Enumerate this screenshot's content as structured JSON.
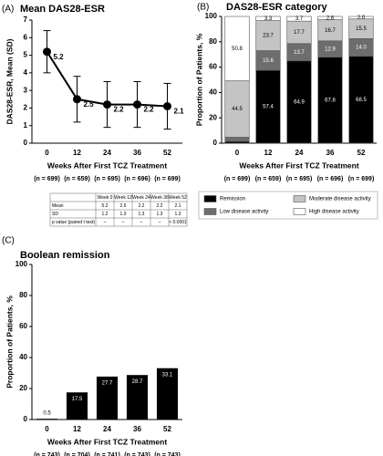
{
  "chart_data": [
    {
      "type": "line",
      "panel": "(A)",
      "title": "Mean DAS28-ESR",
      "categories": [
        "0",
        "12",
        "24",
        "36",
        "52"
      ],
      "n_labels": [
        "(n = 699)",
        "(n = 659)",
        "(n = 695)",
        "(n = 696)",
        "(n = 699)"
      ],
      "series": [
        {
          "name": "Mean DAS28-ESR",
          "color": "#000000",
          "values": [
            5.2,
            2.5,
            2.2,
            2.2,
            2.1
          ],
          "errors": [
            1.2,
            1.3,
            1.3,
            1.3,
            1.3
          ]
        }
      ],
      "xlabel": "Weeks After First TCZ Treatment",
      "ylabel": "DAS28-ESR, Mean (SD)",
      "ylim": [
        0,
        7
      ],
      "yticks": [
        0,
        1,
        2,
        3,
        4,
        5,
        6,
        7
      ]
    },
    {
      "type": "stacked_bar",
      "panel": "(B)",
      "title": "DAS28-ESR category",
      "categories": [
        "0",
        "12",
        "24",
        "36",
        "52"
      ],
      "n_labels": [
        "(n = 699)",
        "(n = 659)",
        "(n = 695)",
        "(n = 696)",
        "(n = 699)"
      ],
      "series": [
        {
          "name": "Remission",
          "color": "#000000",
          "values": [
            1.3,
            57.4,
            64.9,
            67.8,
            68.5
          ],
          "value_labels": [
            null,
            "57.4",
            "64.9",
            "67.8",
            "68.5"
          ]
        },
        {
          "name": "Low disease activity",
          "color": "#6d6d6d",
          "values": [
            3.4,
            15.6,
            13.7,
            12.9,
            14.0
          ],
          "value_labels": [
            null,
            "15.6",
            "13.7",
            "12.9",
            "14.0"
          ]
        },
        {
          "name": "Moderate disease activity",
          "color": "#c4c4c4",
          "values": [
            44.5,
            23.7,
            17.7,
            16.7,
            15.5
          ],
          "value_labels": [
            "44.5",
            "23.7",
            "17.7",
            "16.7",
            "15.5"
          ]
        },
        {
          "name": "High disease activity",
          "color": "#ffffff",
          "values": [
            50.8,
            3.3,
            3.7,
            2.6,
            2.0
          ],
          "value_labels": [
            "50.8",
            "3.3",
            "3.7",
            "2.6",
            "2.0"
          ]
        }
      ],
      "xlabel": "Weeks After First TCZ Treatment",
      "ylabel": "Proportion of Patients, %",
      "ylim": [
        0,
        100
      ],
      "yticks": [
        0,
        20,
        40,
        60,
        80,
        100
      ]
    },
    {
      "type": "bar",
      "panel": "(C)",
      "title": "Boolean remission",
      "categories": [
        "0",
        "12",
        "24",
        "36",
        "52"
      ],
      "n_labels": [
        "(n = 743)",
        "(n = 704)",
        "(n = 741)",
        "(n = 743)",
        "(n = 743)"
      ],
      "values": [
        0.5,
        17.5,
        27.7,
        28.7,
        33.1
      ],
      "color": "#000000",
      "xlabel": "Weeks After First TCZ Treatment",
      "ylabel": "Proportion of Patients, %",
      "ylim": [
        0,
        100
      ],
      "yticks": [
        0,
        20,
        40,
        60,
        80,
        100
      ]
    }
  ],
  "table": {
    "header": [
      "Week 0",
      "Week 12",
      "Week 24",
      "Week 36",
      "Week 52"
    ],
    "rows": [
      [
        "Mean",
        "5.2",
        "2.5",
        "2.2",
        "2.2",
        "2.1"
      ],
      [
        "SD",
        "1.2",
        "1.3",
        "1.3",
        "1.3",
        "1.3"
      ],
      [
        "p value (paired t test)",
        "–",
        "–",
        "–",
        "–",
        "< 0.0001"
      ]
    ]
  }
}
